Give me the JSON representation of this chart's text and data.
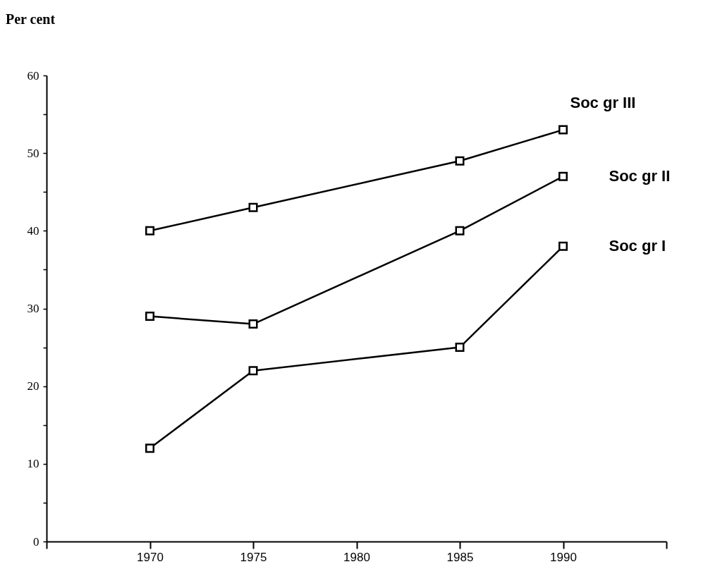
{
  "chart_data": {
    "type": "line",
    "title": "Per cent",
    "x": [
      1970,
      1975,
      1985,
      1990
    ],
    "series": [
      {
        "name": "Soc gr III",
        "color": "#000000",
        "values": [
          40,
          43,
          49,
          53
        ]
      },
      {
        "name": "Soc gr II",
        "color": "#000000",
        "values": [
          29,
          28,
          40,
          47
        ]
      },
      {
        "name": "Soc gr I",
        "color": "#000000",
        "values": [
          12,
          22,
          25,
          38
        ]
      }
    ],
    "xlim": [
      1965,
      1995
    ],
    "xticks": [
      {
        "value": 1965,
        "label": null
      },
      1970,
      1975,
      1980,
      1985,
      1990,
      {
        "value": 1995,
        "label": null
      }
    ],
    "ylim": [
      0,
      60
    ],
    "yticks": [
      0,
      {
        "value": 5,
        "label": null
      },
      10,
      {
        "value": 15,
        "label": null
      },
      20,
      {
        "value": 25,
        "label": null
      },
      30,
      {
        "value": 35,
        "label": null
      },
      40,
      {
        "value": 45,
        "label": null
      },
      50,
      {
        "value": 55,
        "label": null
      },
      60
    ],
    "grid": false,
    "legend": false,
    "marker": "square",
    "line_style": "solid"
  }
}
